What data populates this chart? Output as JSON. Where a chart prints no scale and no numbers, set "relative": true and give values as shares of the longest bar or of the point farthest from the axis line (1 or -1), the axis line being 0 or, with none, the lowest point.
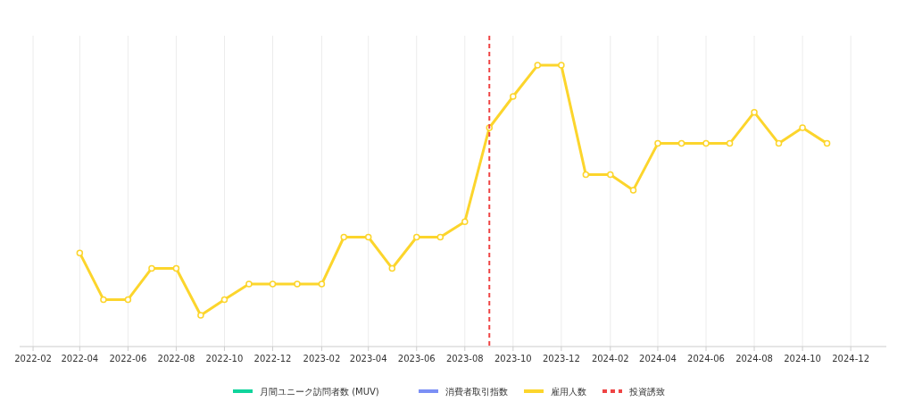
{
  "chart_data": {
    "type": "line",
    "relative": true,
    "x": [
      "2022-04",
      "2022-05",
      "2022-06",
      "2022-07",
      "2022-08",
      "2022-09",
      "2022-10",
      "2022-11",
      "2022-12",
      "2023-01",
      "2023-02",
      "2023-03",
      "2023-04",
      "2023-05",
      "2023-06",
      "2023-07",
      "2023-08",
      "2023-09",
      "2023-10",
      "2023-11",
      "2023-12",
      "2024-01",
      "2024-02",
      "2024-03",
      "2024-04",
      "2024-05",
      "2024-06",
      "2024-07",
      "2024-08",
      "2024-09",
      "2024-10",
      "2024-11"
    ],
    "xlim": [
      "2022-01-15",
      "2025-01-15"
    ],
    "xticks": [
      "2022-02",
      "2022-04",
      "2022-06",
      "2022-08",
      "2022-10",
      "2022-12",
      "2023-02",
      "2023-04",
      "2023-06",
      "2023-08",
      "2023-10",
      "2023-12",
      "2024-02",
      "2024-04",
      "2024-06",
      "2024-08",
      "2024-10",
      "2024-12"
    ],
    "series": [
      {
        "name": "月間ユニーク訪問者数 (MUV)",
        "color": "#10d49c",
        "values": [
          null,
          null,
          null,
          null,
          null,
          null,
          null,
          null,
          null,
          null,
          null,
          null,
          null,
          null,
          null,
          null,
          null,
          null,
          null,
          null,
          null,
          null,
          null,
          null,
          null,
          null,
          null,
          null,
          null,
          null,
          null,
          null
        ]
      },
      {
        "name": "消費者取引指数",
        "color": "#7b8ff5",
        "values": [
          null,
          null,
          null,
          null,
          null,
          null,
          null,
          null,
          null,
          null,
          null,
          null,
          null,
          null,
          null,
          null,
          null,
          null,
          null,
          null,
          null,
          null,
          null,
          null,
          null,
          null,
          null,
          null,
          null,
          null,
          null,
          null
        ]
      },
      {
        "name": "雇用人数",
        "color": "#fcd52c",
        "values": [
          0.333,
          0.167,
          0.167,
          0.278,
          0.278,
          0.111,
          0.167,
          0.222,
          0.222,
          0.222,
          0.222,
          0.389,
          0.389,
          0.278,
          0.389,
          0.389,
          0.444,
          0.778,
          0.889,
          1,
          1,
          0.611,
          0.611,
          0.556,
          0.722,
          0.722,
          0.722,
          0.722,
          0.833,
          0.722,
          0.778,
          0.722
        ]
      }
    ],
    "ref_lines": [
      {
        "axis": "x",
        "value": "2023-09",
        "label": "投資誘致",
        "color": "#ef4444",
        "line_style": "dashed"
      }
    ],
    "grid": "x",
    "marker": "circle",
    "line_style": "solid",
    "legend": "bottom"
  }
}
